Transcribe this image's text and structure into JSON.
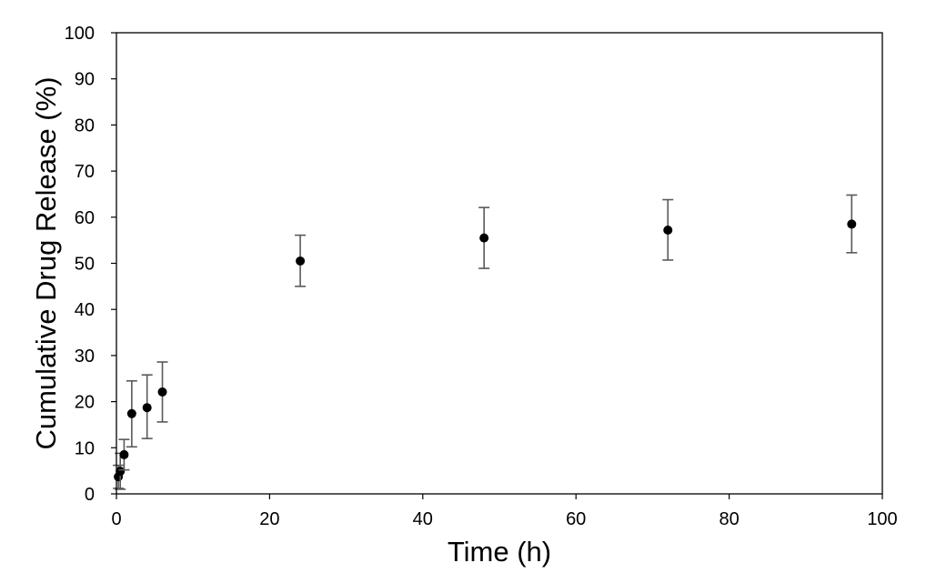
{
  "chart_data": {
    "type": "scatter",
    "title": "",
    "xlabel": "Time (h)",
    "ylabel": "Cumulative Drug Release (%)",
    "xlim": [
      0,
      100
    ],
    "ylim": [
      0,
      100
    ],
    "xticks": [
      0,
      20,
      40,
      60,
      80,
      100
    ],
    "yticks": [
      0,
      10,
      20,
      30,
      40,
      50,
      60,
      70,
      80,
      90,
      100
    ],
    "grid": false,
    "legend": "none",
    "marker_color": "#000000",
    "errorbar_color": "#595959",
    "series": [
      {
        "x": [
          0.25,
          0.5,
          1,
          2,
          4,
          6,
          24,
          48,
          72,
          96
        ],
        "y": [
          3.7,
          4.9,
          8.5,
          17.4,
          18.7,
          22.1,
          50.5,
          55.5,
          57.2,
          58.5
        ],
        "error_low": [
          1.2,
          1.0,
          5.2,
          10.2,
          12.0,
          15.6,
          45.0,
          48.9,
          50.7,
          52.3
        ],
        "error_high": [
          6.2,
          8.8,
          11.8,
          24.5,
          25.8,
          28.6,
          56.1,
          62.1,
          63.8,
          64.8
        ]
      }
    ]
  }
}
